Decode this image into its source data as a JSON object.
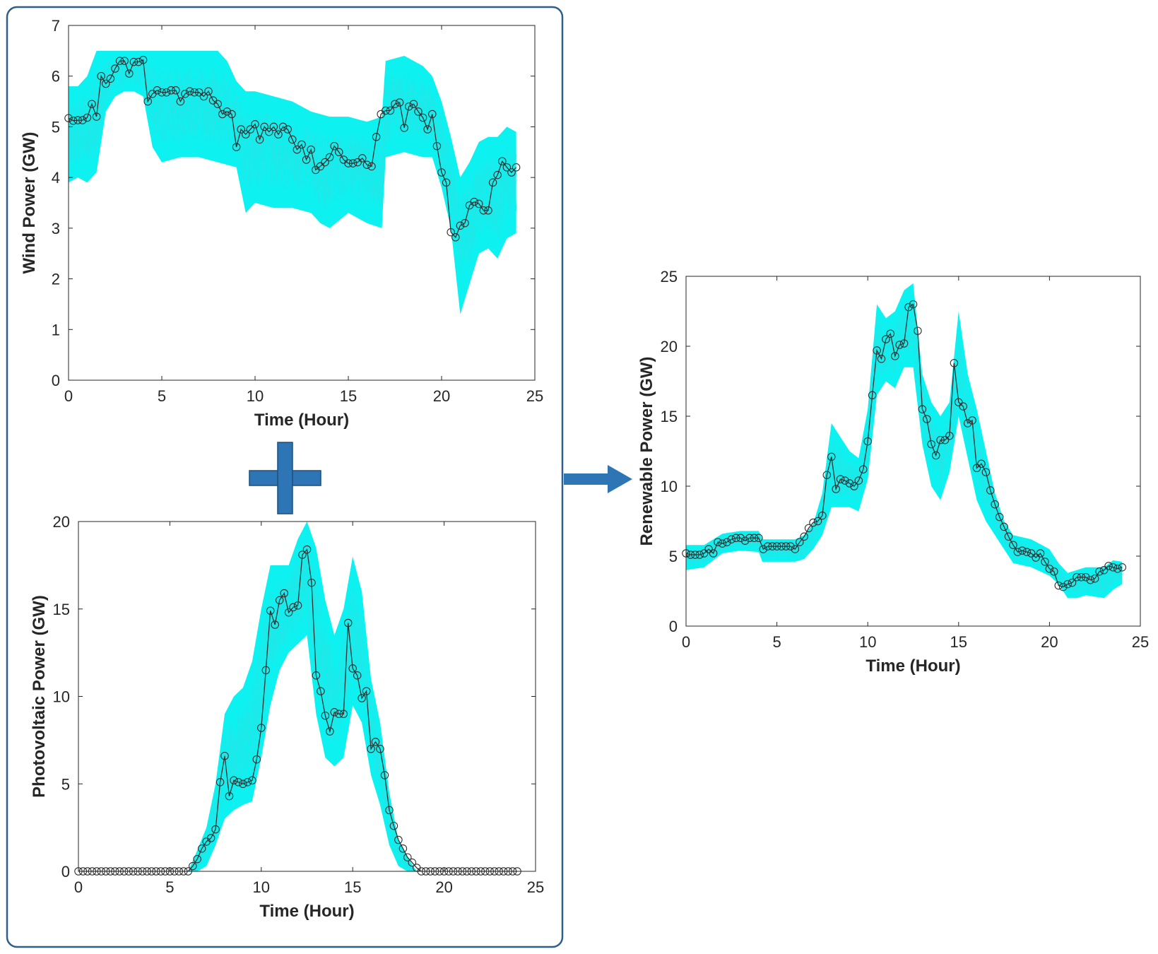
{
  "figure": {
    "panel_border_color": "#2e5f8a",
    "arrow_color": "#2e75b6",
    "scenario_color": "#00f0f0",
    "mean_color": "#303030"
  },
  "chart_data": [
    {
      "id": "wind",
      "type": "line",
      "title": "",
      "xlabel": "Time (Hour)",
      "ylabel": "Wind Power (GW)",
      "xlim": [
        0,
        25
      ],
      "ylim": [
        0,
        7
      ],
      "xticks": [
        0,
        5,
        10,
        15,
        20,
        25
      ],
      "yticks": [
        0,
        1,
        2,
        3,
        4,
        5,
        6,
        7
      ],
      "band_lower": [
        [
          0,
          3.9
        ],
        [
          0.5,
          4.0
        ],
        [
          1,
          3.9
        ],
        [
          1.5,
          4.1
        ],
        [
          2,
          5.3
        ],
        [
          2.5,
          5.6
        ],
        [
          3,
          5.7
        ],
        [
          3.5,
          5.7
        ],
        [
          4,
          5.6
        ],
        [
          4.5,
          4.6
        ],
        [
          5,
          4.3
        ],
        [
          6,
          4.4
        ],
        [
          7,
          4.4
        ],
        [
          8,
          4.3
        ],
        [
          9,
          4.2
        ],
        [
          9.5,
          3.3
        ],
        [
          10,
          3.5
        ],
        [
          11,
          3.4
        ],
        [
          12,
          3.4
        ],
        [
          13,
          3.3
        ],
        [
          13.5,
          3.1
        ],
        [
          14,
          3.0
        ],
        [
          15,
          3.3
        ],
        [
          16,
          3.1
        ],
        [
          16.8,
          3.0
        ],
        [
          17,
          4.4
        ],
        [
          18,
          4.5
        ],
        [
          19,
          4.4
        ],
        [
          19.5,
          4.4
        ],
        [
          20,
          3.8
        ],
        [
          20.5,
          3.0
        ],
        [
          21,
          1.3
        ],
        [
          21.5,
          1.9
        ],
        [
          22,
          2.5
        ],
        [
          22.5,
          2.6
        ],
        [
          23,
          2.4
        ],
        [
          23.5,
          2.8
        ],
        [
          24,
          2.9
        ]
      ],
      "band_upper": [
        [
          0,
          5.8
        ],
        [
          0.5,
          5.8
        ],
        [
          1,
          6.0
        ],
        [
          1.5,
          6.5
        ],
        [
          2,
          6.5
        ],
        [
          2.5,
          6.5
        ],
        [
          3,
          6.5
        ],
        [
          3.5,
          6.5
        ],
        [
          4,
          6.5
        ],
        [
          4.5,
          6.5
        ],
        [
          5,
          6.5
        ],
        [
          6,
          6.5
        ],
        [
          7,
          6.5
        ],
        [
          8,
          6.5
        ],
        [
          8.5,
          6.3
        ],
        [
          9,
          5.9
        ],
        [
          9.5,
          5.7
        ],
        [
          10,
          5.7
        ],
        [
          11,
          5.6
        ],
        [
          12,
          5.5
        ],
        [
          13,
          5.3
        ],
        [
          14,
          5.2
        ],
        [
          15,
          5.2
        ],
        [
          16,
          5.1
        ],
        [
          16.8,
          5.2
        ],
        [
          17,
          6.3
        ],
        [
          18,
          6.4
        ],
        [
          19,
          6.2
        ],
        [
          19.5,
          6.0
        ],
        [
          20,
          5.5
        ],
        [
          20.5,
          4.8
        ],
        [
          21,
          4.0
        ],
        [
          21.5,
          4.3
        ],
        [
          22,
          4.7
        ],
        [
          22.5,
          4.8
        ],
        [
          23,
          4.8
        ],
        [
          23.5,
          5.0
        ],
        [
          24,
          4.9
        ]
      ],
      "mean_x": [
        0,
        0.25,
        0.5,
        0.75,
        1,
        1.25,
        1.5,
        1.75,
        2,
        2.25,
        2.5,
        2.75,
        3,
        3.25,
        3.5,
        3.75,
        4,
        4.25,
        4.5,
        4.75,
        5,
        5.25,
        5.5,
        5.75,
        6,
        6.25,
        6.5,
        6.75,
        7,
        7.25,
        7.5,
        7.75,
        8,
        8.25,
        8.5,
        8.75,
        9,
        9.25,
        9.5,
        9.75,
        10,
        10.25,
        10.5,
        10.75,
        11,
        11.25,
        11.5,
        11.75,
        12,
        12.25,
        12.5,
        12.75,
        13,
        13.25,
        13.5,
        13.75,
        14,
        14.25,
        14.5,
        14.75,
        15,
        15.25,
        15.5,
        15.75,
        16,
        16.25,
        16.5,
        16.75,
        17,
        17.25,
        17.5,
        17.75,
        18,
        18.25,
        18.5,
        18.75,
        19,
        19.25,
        19.5,
        19.75,
        20,
        20.25,
        20.5,
        20.75,
        21,
        21.25,
        21.5,
        21.75,
        22,
        22.25,
        22.5,
        22.75,
        23,
        23.25,
        23.5,
        23.75,
        24
      ],
      "mean_y": [
        5.17,
        5.12,
        5.13,
        5.13,
        5.18,
        5.45,
        5.2,
        6.0,
        5.85,
        5.95,
        6.15,
        6.3,
        6.3,
        6.05,
        6.28,
        6.28,
        6.32,
        5.5,
        5.65,
        5.72,
        5.68,
        5.68,
        5.72,
        5.72,
        5.5,
        5.65,
        5.7,
        5.68,
        5.68,
        5.6,
        5.7,
        5.52,
        5.45,
        5.25,
        5.3,
        5.25,
        4.6,
        4.95,
        4.85,
        4.95,
        5.05,
        4.75,
        5.0,
        4.9,
        5.0,
        4.85,
        5.0,
        4.95,
        4.75,
        4.55,
        4.65,
        4.35,
        4.55,
        4.15,
        4.22,
        4.3,
        4.4,
        4.62,
        4.5,
        4.35,
        4.28,
        4.28,
        4.3,
        4.38,
        4.25,
        4.22,
        4.8,
        5.25,
        5.32,
        5.32,
        5.45,
        5.48,
        4.98,
        5.4,
        5.45,
        5.3,
        5.18,
        4.95,
        5.25,
        4.62,
        4.1,
        3.9,
        2.92,
        2.82,
        3.05,
        3.1,
        3.45,
        3.52,
        3.48,
        3.35,
        3.35,
        3.9,
        4.05,
        4.32,
        4.2,
        4.1,
        4.2
      ]
    },
    {
      "id": "pv",
      "type": "line",
      "title": "",
      "xlabel": "Time (Hour)",
      "ylabel": "Photovoltaic Power (GW)",
      "xlim": [
        0,
        25
      ],
      "ylim": [
        0,
        20
      ],
      "xticks": [
        0,
        5,
        10,
        15,
        20,
        25
      ],
      "yticks": [
        0,
        5,
        10,
        15,
        20
      ],
      "band_lower": [
        [
          6,
          0
        ],
        [
          6.5,
          0
        ],
        [
          7,
          0.3
        ],
        [
          7.5,
          1.5
        ],
        [
          8,
          3.0
        ],
        [
          8.5,
          3.5
        ],
        [
          9,
          3.8
        ],
        [
          9.5,
          4.0
        ],
        [
          10,
          6.5
        ],
        [
          10.5,
          9.5
        ],
        [
          11,
          11.5
        ],
        [
          11.5,
          12.5
        ],
        [
          12,
          13.0
        ],
        [
          12.5,
          13.5
        ],
        [
          13,
          9.0
        ],
        [
          13.5,
          6.5
        ],
        [
          14,
          6.0
        ],
        [
          14.5,
          6.5
        ],
        [
          15,
          9.5
        ],
        [
          15.5,
          8.5
        ],
        [
          16,
          5.5
        ],
        [
          16.5,
          3.8
        ],
        [
          17,
          1.5
        ],
        [
          17.5,
          0.3
        ],
        [
          18,
          0
        ],
        [
          18.5,
          0
        ]
      ],
      "band_upper": [
        [
          6,
          0
        ],
        [
          6.5,
          1.2
        ],
        [
          7,
          2.5
        ],
        [
          7.5,
          5.0
        ],
        [
          8,
          9.0
        ],
        [
          8.5,
          10.0
        ],
        [
          9,
          10.5
        ],
        [
          9.5,
          12.0
        ],
        [
          10,
          15.0
        ],
        [
          10.5,
          17.5
        ],
        [
          11,
          17.5
        ],
        [
          11.5,
          17.5
        ],
        [
          12,
          19.0
        ],
        [
          12.5,
          20.0
        ],
        [
          13,
          18.5
        ],
        [
          13.5,
          15.5
        ],
        [
          14,
          13.5
        ],
        [
          14.5,
          15.0
        ],
        [
          15,
          18.0
        ],
        [
          15.5,
          16.0
        ],
        [
          16,
          11.0
        ],
        [
          16.5,
          8.5
        ],
        [
          17,
          4.5
        ],
        [
          17.5,
          1.8
        ],
        [
          18,
          0.8
        ],
        [
          18.5,
          0
        ]
      ],
      "mean_x": [
        0,
        0.25,
        0.5,
        0.75,
        1,
        1.25,
        1.5,
        1.75,
        2,
        2.25,
        2.5,
        2.75,
        3,
        3.25,
        3.5,
        3.75,
        4,
        4.25,
        4.5,
        4.75,
        5,
        5.25,
        5.5,
        5.75,
        6,
        6.25,
        6.5,
        6.75,
        7,
        7.25,
        7.5,
        7.75,
        8,
        8.25,
        8.5,
        8.75,
        9,
        9.25,
        9.5,
        9.75,
        10,
        10.25,
        10.5,
        10.75,
        11,
        11.25,
        11.5,
        11.75,
        12,
        12.25,
        12.5,
        12.75,
        13,
        13.25,
        13.5,
        13.75,
        14,
        14.25,
        14.5,
        14.75,
        15,
        15.25,
        15.5,
        15.75,
        16,
        16.25,
        16.5,
        16.75,
        17,
        17.25,
        17.5,
        17.75,
        18,
        18.25,
        18.5,
        18.75,
        19,
        19.25,
        19.5,
        19.75,
        20,
        20.25,
        20.5,
        20.75,
        21,
        21.25,
        21.5,
        21.75,
        22,
        22.25,
        22.5,
        22.75,
        23,
        23.25,
        23.5,
        23.75,
        24
      ],
      "mean_y": [
        0,
        0,
        0,
        0,
        0,
        0,
        0,
        0,
        0,
        0,
        0,
        0,
        0,
        0,
        0,
        0,
        0,
        0,
        0,
        0,
        0,
        0,
        0,
        0,
        0,
        0.3,
        0.7,
        1.3,
        1.7,
        1.9,
        2.4,
        5.1,
        6.6,
        4.3,
        5.2,
        5.1,
        5.0,
        5.1,
        5.2,
        6.4,
        8.2,
        11.5,
        14.9,
        14.1,
        15.5,
        15.9,
        14.8,
        15.1,
        15.2,
        18.1,
        18.4,
        16.5,
        11.2,
        10.3,
        8.9,
        8.0,
        9.1,
        9.0,
        9.0,
        14.2,
        11.6,
        11.2,
        9.9,
        10.3,
        7.0,
        7.4,
        7.0,
        5.5,
        3.5,
        2.6,
        1.8,
        1.3,
        0.8,
        0.5,
        0.2,
        0,
        0,
        0,
        0,
        0,
        0,
        0,
        0,
        0,
        0,
        0,
        0,
        0,
        0,
        0,
        0,
        0,
        0,
        0,
        0,
        0,
        0
      ]
    },
    {
      "id": "renewable",
      "type": "line",
      "title": "",
      "xlabel": "Time (Hour)",
      "ylabel": "Renewable Power (GW)",
      "xlim": [
        0,
        25
      ],
      "ylim": [
        0,
        25
      ],
      "xticks": [
        0,
        5,
        10,
        15,
        20,
        25
      ],
      "yticks": [
        0,
        5,
        10,
        15,
        20,
        25
      ],
      "band_lower": [
        [
          0,
          4.0
        ],
        [
          1,
          4.2
        ],
        [
          2,
          5.2
        ],
        [
          3,
          5.4
        ],
        [
          4,
          5.3
        ],
        [
          4.2,
          4.6
        ],
        [
          5,
          4.6
        ],
        [
          6,
          4.6
        ],
        [
          6.5,
          4.8
        ],
        [
          7,
          5.5
        ],
        [
          7.5,
          6.5
        ],
        [
          8,
          8.5
        ],
        [
          9,
          8.5
        ],
        [
          9.5,
          8.2
        ],
        [
          10,
          10.5
        ],
        [
          10.5,
          16.5
        ],
        [
          11,
          17.5
        ],
        [
          11.5,
          17.0
        ],
        [
          12,
          18.5
        ],
        [
          12.5,
          18.5
        ],
        [
          13,
          13.0
        ],
        [
          13.5,
          10.0
        ],
        [
          14,
          9.0
        ],
        [
          14.5,
          11.0
        ],
        [
          15,
          15.0
        ],
        [
          15.5,
          12.0
        ],
        [
          16,
          9.0
        ],
        [
          16.5,
          7.5
        ],
        [
          17,
          6.5
        ],
        [
          17.5,
          5.5
        ],
        [
          18,
          4.5
        ],
        [
          19,
          4.2
        ],
        [
          20,
          3.6
        ],
        [
          20.5,
          3.0
        ],
        [
          21,
          2.0
        ],
        [
          21.5,
          2.0
        ],
        [
          22,
          2.2
        ],
        [
          23,
          2.0
        ],
        [
          23.5,
          2.6
        ],
        [
          24,
          3.0
        ]
      ],
      "band_upper": [
        [
          0,
          5.8
        ],
        [
          1,
          5.8
        ],
        [
          2,
          6.6
        ],
        [
          3,
          6.8
        ],
        [
          4,
          6.8
        ],
        [
          4.2,
          6.2
        ],
        [
          5,
          6.2
        ],
        [
          6,
          6.2
        ],
        [
          6.5,
          6.5
        ],
        [
          7,
          7.3
        ],
        [
          7.5,
          9.5
        ],
        [
          8,
          14.5
        ],
        [
          9,
          12.5
        ],
        [
          9.5,
          12.0
        ],
        [
          10,
          15.5
        ],
        [
          10.5,
          23.0
        ],
        [
          11,
          22.0
        ],
        [
          11.5,
          22.5
        ],
        [
          12,
          24.0
        ],
        [
          12.5,
          24.5
        ],
        [
          13,
          18.0
        ],
        [
          13.5,
          16.0
        ],
        [
          14,
          15.0
        ],
        [
          14.5,
          16.0
        ],
        [
          15,
          22.5
        ],
        [
          15.5,
          18.0
        ],
        [
          16,
          15.5
        ],
        [
          16.5,
          12.5
        ],
        [
          17,
          9.5
        ],
        [
          17.5,
          7.5
        ],
        [
          18,
          6.5
        ],
        [
          19,
          6.2
        ],
        [
          20,
          5.5
        ],
        [
          20.5,
          4.5
        ],
        [
          21,
          3.8
        ],
        [
          21.5,
          4.0
        ],
        [
          22,
          4.2
        ],
        [
          23,
          4.2
        ],
        [
          23.5,
          4.7
        ],
        [
          24,
          4.6
        ]
      ],
      "mean_x": [
        0,
        0.25,
        0.5,
        0.75,
        1,
        1.25,
        1.5,
        1.75,
        2,
        2.25,
        2.5,
        2.75,
        3,
        3.25,
        3.5,
        3.75,
        4,
        4.25,
        4.5,
        4.75,
        5,
        5.25,
        5.5,
        5.75,
        6,
        6.25,
        6.5,
        6.75,
        7,
        7.25,
        7.5,
        7.75,
        8,
        8.25,
        8.5,
        8.75,
        9,
        9.25,
        9.5,
        9.75,
        10,
        10.25,
        10.5,
        10.75,
        11,
        11.25,
        11.5,
        11.75,
        12,
        12.25,
        12.5,
        12.75,
        13,
        13.25,
        13.5,
        13.75,
        14,
        14.25,
        14.5,
        14.75,
        15,
        15.25,
        15.5,
        15.75,
        16,
        16.25,
        16.5,
        16.75,
        17,
        17.25,
        17.5,
        17.75,
        18,
        18.25,
        18.5,
        18.75,
        19,
        19.25,
        19.5,
        19.75,
        20,
        20.25,
        20.5,
        20.75,
        21,
        21.25,
        21.5,
        21.75,
        22,
        22.25,
        22.5,
        22.75,
        23,
        23.25,
        23.5,
        23.75,
        24
      ],
      "mean_y": [
        5.2,
        5.1,
        5.1,
        5.1,
        5.2,
        5.5,
        5.2,
        6.0,
        5.9,
        6.0,
        6.2,
        6.3,
        6.3,
        6.1,
        6.3,
        6.3,
        6.3,
        5.5,
        5.7,
        5.7,
        5.7,
        5.7,
        5.7,
        5.7,
        5.5,
        6.0,
        6.4,
        7.0,
        7.4,
        7.5,
        7.9,
        10.8,
        12.1,
        9.8,
        10.5,
        10.4,
        10.2,
        10.0,
        10.4,
        11.2,
        13.2,
        16.5,
        19.7,
        19.1,
        20.5,
        20.9,
        19.3,
        20.1,
        20.2,
        22.8,
        23.0,
        21.1,
        15.5,
        14.8,
        13.0,
        12.2,
        13.3,
        13.3,
        13.6,
        18.8,
        16.0,
        15.7,
        14.5,
        14.7,
        11.3,
        11.6,
        11.0,
        9.7,
        8.7,
        7.8,
        7.1,
        6.4,
        5.8,
        5.3,
        5.4,
        5.3,
        5.2,
        4.9,
        5.2,
        4.6,
        4.1,
        3.9,
        2.9,
        2.8,
        3.0,
        3.1,
        3.5,
        3.5,
        3.5,
        3.3,
        3.4,
        3.9,
        4.0,
        4.3,
        4.2,
        4.1,
        4.2
      ]
    }
  ]
}
